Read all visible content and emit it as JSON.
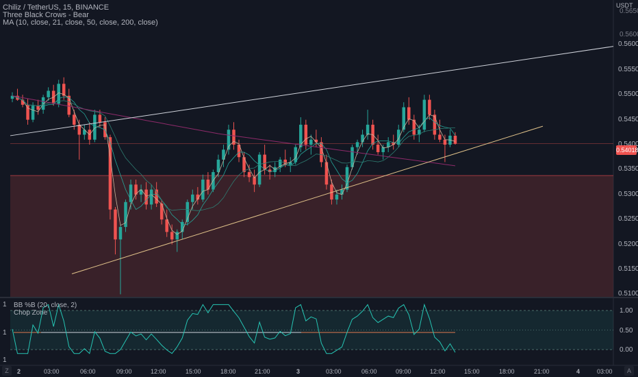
{
  "header": {
    "symbol_line": "Chiliz / TetherUS, 15, BINANCE",
    "pattern_line": "Three Black Crows - Bear",
    "ma_line": "MA (10, close, 21, close, 50, close, 200, close)",
    "currency": "USDT"
  },
  "price_axis": {
    "labels": [
      "0.56000",
      "0.55500",
      "0.55000",
      "0.54500",
      "0.54000",
      "0.53500",
      "0.53000",
      "0.52500",
      "0.52000",
      "0.51500",
      "0.51000"
    ],
    "partial_top": "0.56500",
    "partial_mid": "0.56000",
    "current_price": "0.54018",
    "current_price_color": "#ef5350"
  },
  "time_axis": {
    "labels": [
      "2",
      "03:00",
      "06:00",
      "09:00",
      "12:00",
      "15:00",
      "18:00",
      "21:00",
      "3",
      "03:00",
      "06:00",
      "09:00",
      "12:00",
      "15:00",
      "18:00",
      "21:00",
      "4",
      "03:00"
    ]
  },
  "indicator_pane": {
    "bb_label": "BB %B (20, close, 2)",
    "chop_label": "Chop Zone",
    "axis_labels": [
      "1.00",
      "0.50",
      "0.00"
    ],
    "left_labels": [
      "1",
      "1",
      "1"
    ]
  },
  "corner_buttons": {
    "left": "Z",
    "right": "A"
  },
  "colors": {
    "up": "#26a69a",
    "down": "#ef5350",
    "ma10": "#c8b49c",
    "ma21": "#26a69a",
    "ma50": "#2e7d72",
    "ma200": "#8e2a6a",
    "trendline_upper": "#d1d4dc",
    "trendline_lower": "#e0c28a",
    "zone": "#5a2a2f",
    "bb_line": "#26c6b5"
  },
  "chart_data": {
    "type": "candlestick",
    "ohlc": [
      [
        0.5492,
        0.5505,
        0.5485,
        0.5498
      ],
      [
        0.5498,
        0.5512,
        0.5488,
        0.549
      ],
      [
        0.549,
        0.55,
        0.5475,
        0.548
      ],
      [
        0.548,
        0.5492,
        0.544,
        0.545
      ],
      [
        0.545,
        0.5485,
        0.5445,
        0.5478
      ],
      [
        0.5478,
        0.549,
        0.546,
        0.547
      ],
      [
        0.547,
        0.55,
        0.5462,
        0.5495
      ],
      [
        0.5495,
        0.5515,
        0.5488,
        0.5508
      ],
      [
        0.5508,
        0.552,
        0.5478,
        0.5482
      ],
      [
        0.5482,
        0.553,
        0.5475,
        0.5522
      ],
      [
        0.5522,
        0.5535,
        0.549,
        0.5498
      ],
      [
        0.5498,
        0.5512,
        0.5455,
        0.546
      ],
      [
        0.546,
        0.547,
        0.543,
        0.544
      ],
      [
        0.544,
        0.545,
        0.537,
        0.542
      ],
      [
        0.542,
        0.544,
        0.541,
        0.543
      ],
      [
        0.543,
        0.5445,
        0.54,
        0.541
      ],
      [
        0.541,
        0.547,
        0.5405,
        0.546
      ],
      [
        0.546,
        0.547,
        0.5435,
        0.5445
      ],
      [
        0.5445,
        0.5455,
        0.541,
        0.5415
      ],
      [
        0.5415,
        0.542,
        0.525,
        0.527
      ],
      [
        0.527,
        0.5275,
        0.518,
        0.521
      ],
      [
        0.521,
        0.524,
        0.51,
        0.5235
      ],
      [
        0.5235,
        0.529,
        0.5225,
        0.5285
      ],
      [
        0.5285,
        0.533,
        0.527,
        0.532
      ],
      [
        0.532,
        0.533,
        0.529,
        0.53
      ],
      [
        0.53,
        0.532,
        0.5285,
        0.531
      ],
      [
        0.531,
        0.5325,
        0.527,
        0.528
      ],
      [
        0.528,
        0.532,
        0.527,
        0.531
      ],
      [
        0.531,
        0.5325,
        0.5275,
        0.5282
      ],
      [
        0.5282,
        0.529,
        0.524,
        0.525
      ],
      [
        0.525,
        0.527,
        0.5215,
        0.5225
      ],
      [
        0.5225,
        0.524,
        0.52,
        0.521
      ],
      [
        0.521,
        0.523,
        0.5185,
        0.5225
      ],
      [
        0.5225,
        0.525,
        0.521,
        0.5245
      ],
      [
        0.5245,
        0.529,
        0.5238,
        0.5285
      ],
      [
        0.5285,
        0.531,
        0.527,
        0.53
      ],
      [
        0.53,
        0.5315,
        0.528,
        0.529
      ],
      [
        0.529,
        0.534,
        0.5285,
        0.533
      ],
      [
        0.533,
        0.5345,
        0.53,
        0.531
      ],
      [
        0.531,
        0.535,
        0.5305,
        0.5345
      ],
      [
        0.5345,
        0.538,
        0.5335,
        0.537
      ],
      [
        0.537,
        0.54,
        0.5355,
        0.539
      ],
      [
        0.539,
        0.544,
        0.538,
        0.543
      ],
      [
        0.543,
        0.5445,
        0.539,
        0.54
      ],
      [
        0.54,
        0.541,
        0.5365,
        0.5375
      ],
      [
        0.5375,
        0.5385,
        0.5335,
        0.5345
      ],
      [
        0.5345,
        0.536,
        0.5325,
        0.5335
      ],
      [
        0.5335,
        0.535,
        0.5305,
        0.532
      ],
      [
        0.532,
        0.5385,
        0.5315,
        0.538
      ],
      [
        0.538,
        0.54,
        0.534,
        0.535
      ],
      [
        0.535,
        0.536,
        0.533,
        0.5345
      ],
      [
        0.5345,
        0.5365,
        0.5335,
        0.5355
      ],
      [
        0.5355,
        0.5375,
        0.5345,
        0.537
      ],
      [
        0.537,
        0.539,
        0.5355,
        0.536
      ],
      [
        0.536,
        0.5375,
        0.5345,
        0.5365
      ],
      [
        0.5365,
        0.54,
        0.536,
        0.5395
      ],
      [
        0.5395,
        0.5455,
        0.5385,
        0.544
      ],
      [
        0.544,
        0.545,
        0.539,
        0.54
      ],
      [
        0.54,
        0.542,
        0.538,
        0.541
      ],
      [
        0.541,
        0.543,
        0.5395,
        0.5405
      ],
      [
        0.5405,
        0.5415,
        0.5355,
        0.5365
      ],
      [
        0.5365,
        0.538,
        0.531,
        0.532
      ],
      [
        0.532,
        0.533,
        0.528,
        0.529
      ],
      [
        0.529,
        0.531,
        0.528,
        0.53
      ],
      [
        0.53,
        0.532,
        0.529,
        0.531
      ],
      [
        0.531,
        0.536,
        0.5305,
        0.5355
      ],
      [
        0.5355,
        0.54,
        0.535,
        0.5395
      ],
      [
        0.5395,
        0.541,
        0.538,
        0.5405
      ],
      [
        0.5405,
        0.543,
        0.5395,
        0.542
      ],
      [
        0.542,
        0.547,
        0.541,
        0.544
      ],
      [
        0.544,
        0.545,
        0.539,
        0.54
      ],
      [
        0.54,
        0.542,
        0.538,
        0.5385
      ],
      [
        0.5385,
        0.54,
        0.537,
        0.5395
      ],
      [
        0.5395,
        0.5415,
        0.5385,
        0.5405
      ],
      [
        0.5405,
        0.542,
        0.539,
        0.54
      ],
      [
        0.54,
        0.544,
        0.5395,
        0.543
      ],
      [
        0.543,
        0.5485,
        0.5425,
        0.5475
      ],
      [
        0.5475,
        0.5495,
        0.544,
        0.545
      ],
      [
        0.545,
        0.546,
        0.541,
        0.542
      ],
      [
        0.542,
        0.544,
        0.5405,
        0.543
      ],
      [
        0.543,
        0.55,
        0.5425,
        0.549
      ],
      [
        0.549,
        0.55,
        0.545,
        0.546
      ],
      [
        0.546,
        0.547,
        0.541,
        0.542
      ],
      [
        0.542,
        0.545,
        0.5405,
        0.541
      ],
      [
        0.541,
        0.542,
        0.5365,
        0.54
      ],
      [
        0.54,
        0.543,
        0.5395,
        0.5418
      ],
      [
        0.5418,
        0.5425,
        0.54,
        0.5402
      ]
    ]
  }
}
